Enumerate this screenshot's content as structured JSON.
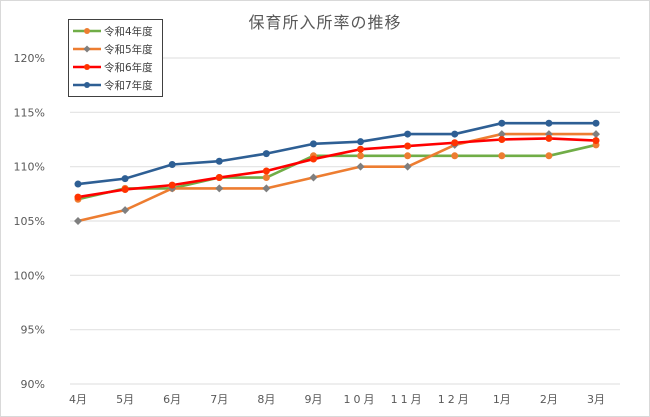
{
  "chart_data": {
    "type": "line",
    "title": "保育所入所率の推移",
    "xlabel": "",
    "ylabel": "",
    "categories": [
      "4月",
      "5月",
      "6月",
      "7月",
      "8月",
      "9月",
      "10月",
      "11月",
      "12月",
      "1月",
      "2月",
      "3月"
    ],
    "y_ticks": [
      "90%",
      "95%",
      "100%",
      "105%",
      "110%",
      "115%",
      "120%"
    ],
    "ylim": [
      90,
      120
    ],
    "y_unit": "%",
    "grid": true,
    "legend_position": "top-left inside",
    "series": [
      {
        "name": "令和4年度",
        "line_color": "#70ad47",
        "marker_color": "#ed7d31",
        "marker": "circle",
        "values": [
          107.0,
          108.0,
          108.0,
          109.0,
          109.0,
          111.0,
          111.0,
          111.0,
          111.0,
          111.0,
          111.0,
          112.0
        ]
      },
      {
        "name": "令和5年度",
        "line_color": "#ed7d31",
        "marker_color": "#7f7f7f",
        "marker": "diamond",
        "values": [
          105.0,
          106.0,
          108.0,
          108.0,
          108.0,
          109.0,
          110.0,
          110.0,
          112.0,
          113.0,
          113.0,
          113.0
        ]
      },
      {
        "name": "令和6年度",
        "line_color": "#ff0000",
        "marker_color": "#ff3300",
        "marker": "circle",
        "values": [
          107.2,
          107.9,
          108.3,
          109.0,
          109.6,
          110.7,
          111.6,
          111.9,
          112.2,
          112.5,
          112.6,
          112.4
        ]
      },
      {
        "name": "令和7年度",
        "line_color": "#2e5f94",
        "marker_color": "#2e5f94",
        "marker": "circle",
        "values": [
          108.4,
          108.9,
          110.2,
          110.5,
          111.2,
          112.1,
          112.3,
          113.0,
          113.0,
          114.0,
          114.0,
          114.0
        ]
      }
    ]
  }
}
